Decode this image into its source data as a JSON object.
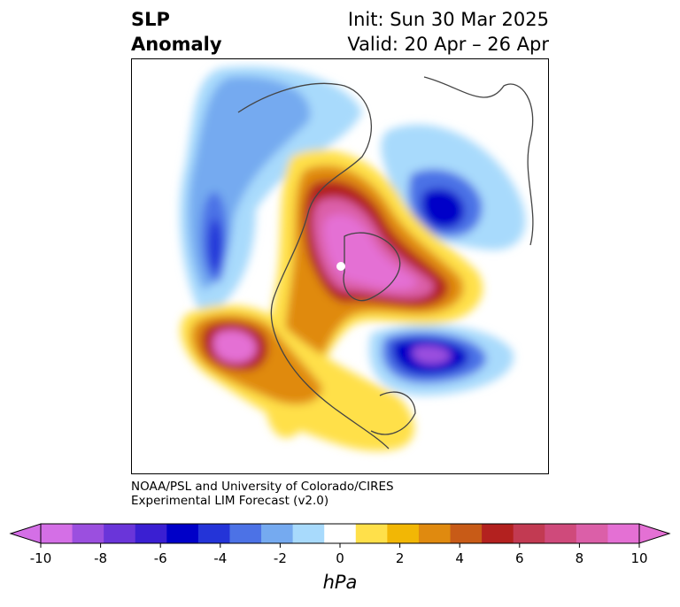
{
  "title": {
    "left_line1": "SLP",
    "left_line2": "Anomaly",
    "right_line1": "Init: Sun 30 Mar 2025",
    "right_line2": "Valid: 20 Apr – 26 Apr"
  },
  "credit": {
    "line1": "NOAA/PSL and University of Colorado/CIRES",
    "line2": "Experimental LIM Forecast (v2.0)"
  },
  "colorbar": {
    "unit": "hPa",
    "tick_labels": [
      "-10",
      "-8",
      "-6",
      "-4",
      "-2",
      "0",
      "2",
      "4",
      "6",
      "8",
      "10"
    ],
    "colors": [
      "#d46fe6",
      "#9b4fdf",
      "#6a35d9",
      "#3a1fd2",
      "#0000c8",
      "#2434d8",
      "#4c72e6",
      "#75aaf0",
      "#a8dafc",
      "#ffffff",
      "#ffe04a",
      "#f2b705",
      "#e08a0f",
      "#c85b17",
      "#b3211f",
      "#c23a52",
      "#cf4a7b",
      "#db5fa8",
      "#e470d4"
    ],
    "under_color": "#d46fe6",
    "over_color": "#e470d4"
  }
}
